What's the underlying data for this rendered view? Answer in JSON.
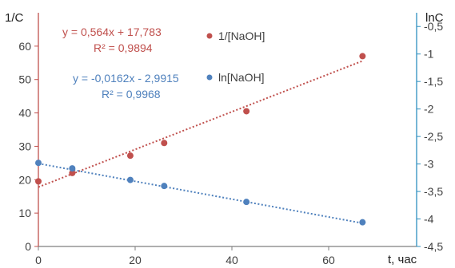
{
  "chart_data": {
    "type": "scatter",
    "x_axis": {
      "min": 0,
      "max": 70,
      "ticks": [
        0,
        20,
        40,
        60
      ],
      "label": "t, час"
    },
    "y_left": {
      "min": 0,
      "max": 70,
      "ticks": [
        0,
        10,
        20,
        30,
        40,
        50,
        60
      ],
      "label": "1/C"
    },
    "y_right": {
      "min": -4.5,
      "max": -0.25,
      "ticks": [
        -4.5,
        -4,
        -3.5,
        -3,
        -2.5,
        -2,
        -1.5,
        -1,
        -0.5
      ],
      "label": "lnC"
    },
    "series": [
      {
        "name": "1/[NaOH]",
        "axis": "left",
        "color": "#c0504d",
        "x": [
          0,
          7,
          19,
          26,
          43,
          67
        ],
        "y": [
          19.5,
          22,
          27.2,
          31,
          40.5,
          57
        ],
        "trendline": {
          "slope": 0.564,
          "intercept": 17.783,
          "x_range": [
            0,
            67
          ]
        },
        "equation": "y = 0,564x + 17,783",
        "r2": "R² = 0,9894"
      },
      {
        "name": "ln[NaOH]",
        "axis": "right",
        "color": "#4f81bd",
        "x": [
          0,
          7,
          19,
          26,
          43,
          67
        ],
        "y": [
          -2.98,
          -3.08,
          -3.29,
          -3.4,
          -3.69,
          -4.06
        ],
        "trendline": {
          "slope": -0.0162,
          "intercept": -2.9915,
          "x_range": [
            0,
            67
          ]
        },
        "equation": "y = -0,0162x - 2,9915",
        "r2": "R² = 0,9968"
      }
    ],
    "colors": {
      "left_axis": "#c0504d",
      "right_axis": "#2e8fbf",
      "axis": "#7f7f7f"
    }
  }
}
